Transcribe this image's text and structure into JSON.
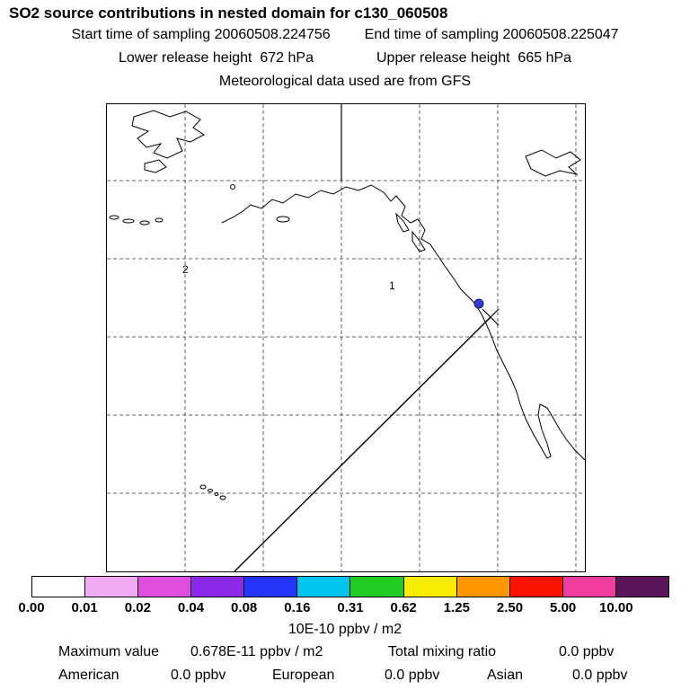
{
  "header": {
    "title": "SO2 source contributions in nested domain for c130_060508",
    "start_time": "Start time of sampling 20060508.224756",
    "end_time": "End time of sampling 20060508.225047",
    "lower_release": "Lower release height  672 hPa",
    "upper_release": "Upper release height  665 hPa",
    "met_data": "Meteorological data used are from GFS"
  },
  "map": {
    "domain_labels": [
      {
        "text": "2"
      },
      {
        "text": "1"
      }
    ],
    "marker_color": "#3a3ad0"
  },
  "colorbar": {
    "units": "10E-10 ppbv / m2",
    "tick_labels": [
      "0.00",
      "0.01",
      "0.02",
      "0.04",
      "0.08",
      "0.16",
      "0.31",
      "0.62",
      "1.25",
      "2.50",
      "5.00",
      "10.00"
    ],
    "colors": [
      "#ffffff",
      "#f2aaf2",
      "#e04ee0",
      "#8c28e8",
      "#2434fa",
      "#00c4ee",
      "#22cc22",
      "#f8ec00",
      "#ff9800",
      "#fa1400",
      "#f03c9c",
      "#5a1458"
    ]
  },
  "stats": {
    "maximum_label": "Maximum value",
    "maximum_value": "0.678E-11 ppbv / m2",
    "total_label": "Total mixing ratio",
    "total_value": "0.0 ppbv",
    "regions": [
      {
        "name": "American",
        "value": "0.0 ppbv"
      },
      {
        "name": "European",
        "value": "0.0 ppbv"
      },
      {
        "name": "Asian",
        "value": "0.0 ppbv"
      }
    ]
  },
  "chart_data": {
    "type": "heatmap",
    "title": "SO2 source contributions in nested domain for c130_060508",
    "units": "10E-10 ppbv / m2",
    "colorbar_scale": [
      0.0,
      0.01,
      0.02,
      0.04,
      0.08,
      0.16,
      0.31,
      0.62,
      1.25,
      2.5,
      5.0,
      10.0
    ],
    "colorbar_colors": [
      "#ffffff",
      "#f2aaf2",
      "#e04ee0",
      "#8c28e8",
      "#2434fa",
      "#00c4ee",
      "#22cc22",
      "#f8ec00",
      "#ff9800",
      "#fa1400",
      "#f03c9c",
      "#5a1458"
    ],
    "maximum_value": "0.678E-11 ppbv / m2",
    "total_mixing_ratio_ppbv": 0.0,
    "regional_contributions_ppbv": {
      "American": 0.0,
      "European": 0.0,
      "Asian": 0.0
    },
    "sampling": {
      "start": "20060508.224756",
      "end": "20060508.225047"
    },
    "release_heights_hPa": {
      "lower": 672,
      "upper": 665
    },
    "met_source": "GFS",
    "map_domain_labels": [
      "2",
      "1"
    ],
    "legend_position": "bottom",
    "grid": true
  }
}
